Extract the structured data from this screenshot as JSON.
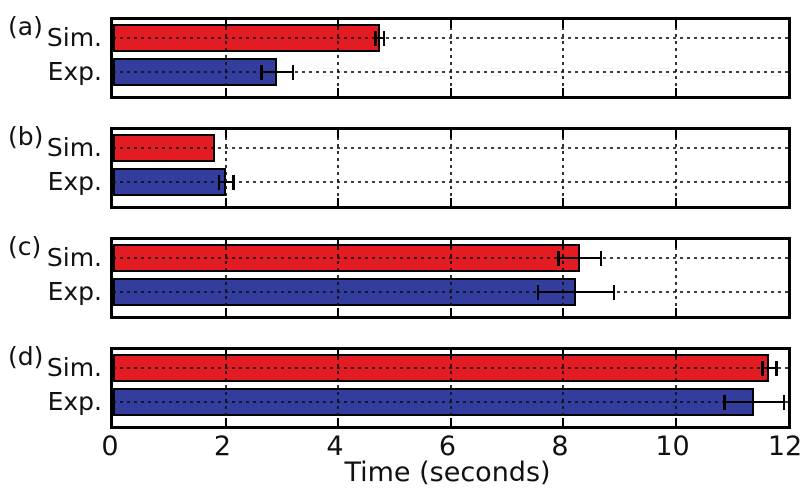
{
  "figure": {
    "background": "#ffffff"
  },
  "chart_data": {
    "type": "bar",
    "orientation": "horizontal",
    "title": "",
    "xlabel": "Time (seconds)",
    "ylabel": "",
    "xlim": [
      0,
      12
    ],
    "x_ticks": [
      0,
      2,
      4,
      6,
      8,
      10,
      12
    ],
    "grid": true,
    "grid_style": "dotted",
    "row_labels": [
      "Sim.",
      "Exp."
    ],
    "colors": {
      "sim_bar": "#e31b23",
      "exp_bar": "#333d9e",
      "bar_edge": "#000000",
      "error_bar": "#000000",
      "frame": "#000000",
      "text": "#111111"
    },
    "units": "seconds",
    "panels": [
      {
        "label": "(a)",
        "series": [
          {
            "name": "Sim.",
            "value": 4.74,
            "error": 0.1,
            "color": "#e31b23"
          },
          {
            "name": "Exp.",
            "value": 2.92,
            "error": 0.3,
            "color": "#333d9e"
          }
        ]
      },
      {
        "label": "(b)",
        "series": [
          {
            "name": "Sim.",
            "value": 1.81,
            "error": 0.0,
            "color": "#e31b23"
          },
          {
            "name": "Exp.",
            "value": 2.01,
            "error": 0.15,
            "color": "#333d9e"
          }
        ]
      },
      {
        "label": "(c)",
        "series": [
          {
            "name": "Sim.",
            "value": 8.3,
            "error": 0.4,
            "color": "#e31b23"
          },
          {
            "name": "Exp.",
            "value": 8.23,
            "error": 0.7,
            "color": "#333d9e"
          }
        ]
      },
      {
        "label": "(d)",
        "series": [
          {
            "name": "Sim.",
            "value": 11.67,
            "error": 0.15,
            "color": "#e31b23"
          },
          {
            "name": "Exp.",
            "value": 11.4,
            "error": 0.55,
            "color": "#333d9e"
          }
        ]
      }
    ]
  }
}
